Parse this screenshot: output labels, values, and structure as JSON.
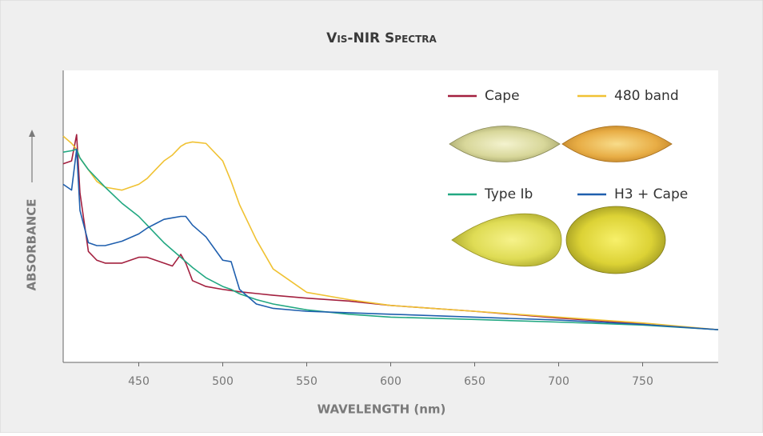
{
  "chart_data": {
    "type": "line",
    "title": "Vis-NIR Spectra",
    "xlabel": "WAVELENGTH (nm)",
    "ylabel": "ABSORBANCE",
    "x": [
      405,
      410,
      413,
      415,
      420,
      425,
      430,
      440,
      450,
      455,
      460,
      465,
      470,
      475,
      478,
      482,
      490,
      500,
      505,
      510,
      520,
      530,
      550,
      575,
      600,
      650,
      700,
      750,
      795
    ],
    "xlim": [
      405,
      795
    ],
    "xticks": [
      450,
      500,
      550,
      600,
      650,
      700,
      750
    ],
    "ylim": [
      0,
      100
    ],
    "series": [
      {
        "name": "Cape",
        "color": "#a3203f",
        "values": [
          68,
          69,
          78,
          58,
          38,
          35,
          34,
          34,
          36,
          36,
          35,
          34,
          33,
          37,
          34,
          28,
          26,
          25,
          24.6,
          24.2,
          23.6,
          23,
          22,
          21,
          19.5,
          17.5,
          15.2,
          13.2,
          11.2
        ]
      },
      {
        "name": "480 band",
        "color": "#f0c233",
        "values": [
          77.5,
          75,
          73,
          70,
          66,
          62,
          60,
          59,
          61,
          63,
          66,
          69,
          71,
          74,
          75,
          75.5,
          75,
          69,
          62,
          54,
          42,
          32,
          24,
          21.5,
          19.5,
          17.5,
          15.5,
          13.5,
          11.2
        ]
      },
      {
        "name": "Type Ib",
        "color": "#22a882",
        "values": [
          72,
          72.5,
          73,
          70,
          66,
          63,
          60,
          54.5,
          50,
          47,
          44,
          41,
          38.5,
          36,
          34.5,
          32.5,
          29,
          26,
          25,
          23.5,
          21.5,
          20,
          18,
          16.5,
          15.5,
          14.7,
          13.8,
          12.8,
          11.2
        ]
      },
      {
        "name": "H3 + Cape",
        "color": "#1f5fae",
        "values": [
          61,
          59,
          73,
          52,
          41,
          40,
          40,
          41.5,
          44,
          46,
          47.5,
          49,
          49.5,
          50,
          50,
          47,
          43,
          35,
          34.5,
          25,
          20,
          18.5,
          17.5,
          17,
          16.5,
          15.5,
          14.5,
          13,
          11.2
        ]
      }
    ]
  }
}
